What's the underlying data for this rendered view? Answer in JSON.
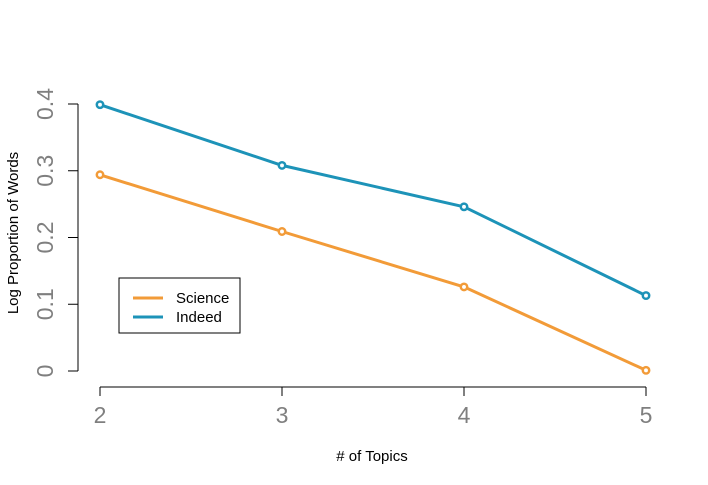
{
  "chart_data": {
    "type": "line",
    "title": "",
    "xlabel": "# of Topics",
    "ylabel": "Log Proportion of Words",
    "x": [
      2,
      3,
      4,
      5
    ],
    "x_tick_labels": [
      "2",
      "3",
      "4",
      "5"
    ],
    "y_ticks": [
      0,
      0.1,
      0.2,
      0.3,
      0.4
    ],
    "y_tick_labels": [
      "0",
      "0.1",
      "0.2",
      "0.3",
      "0.4"
    ],
    "xlim": [
      2,
      5
    ],
    "ylim": [
      0,
      0.4
    ],
    "grid": false,
    "legend_position": "bottom-left",
    "series": [
      {
        "name": "Science",
        "color": "#f29b38",
        "values": [
          0.294,
          0.209,
          0.126,
          0.001
        ]
      },
      {
        "name": "Indeed",
        "color": "#1d93b8",
        "values": [
          0.399,
          0.308,
          0.246,
          0.113
        ]
      }
    ]
  }
}
